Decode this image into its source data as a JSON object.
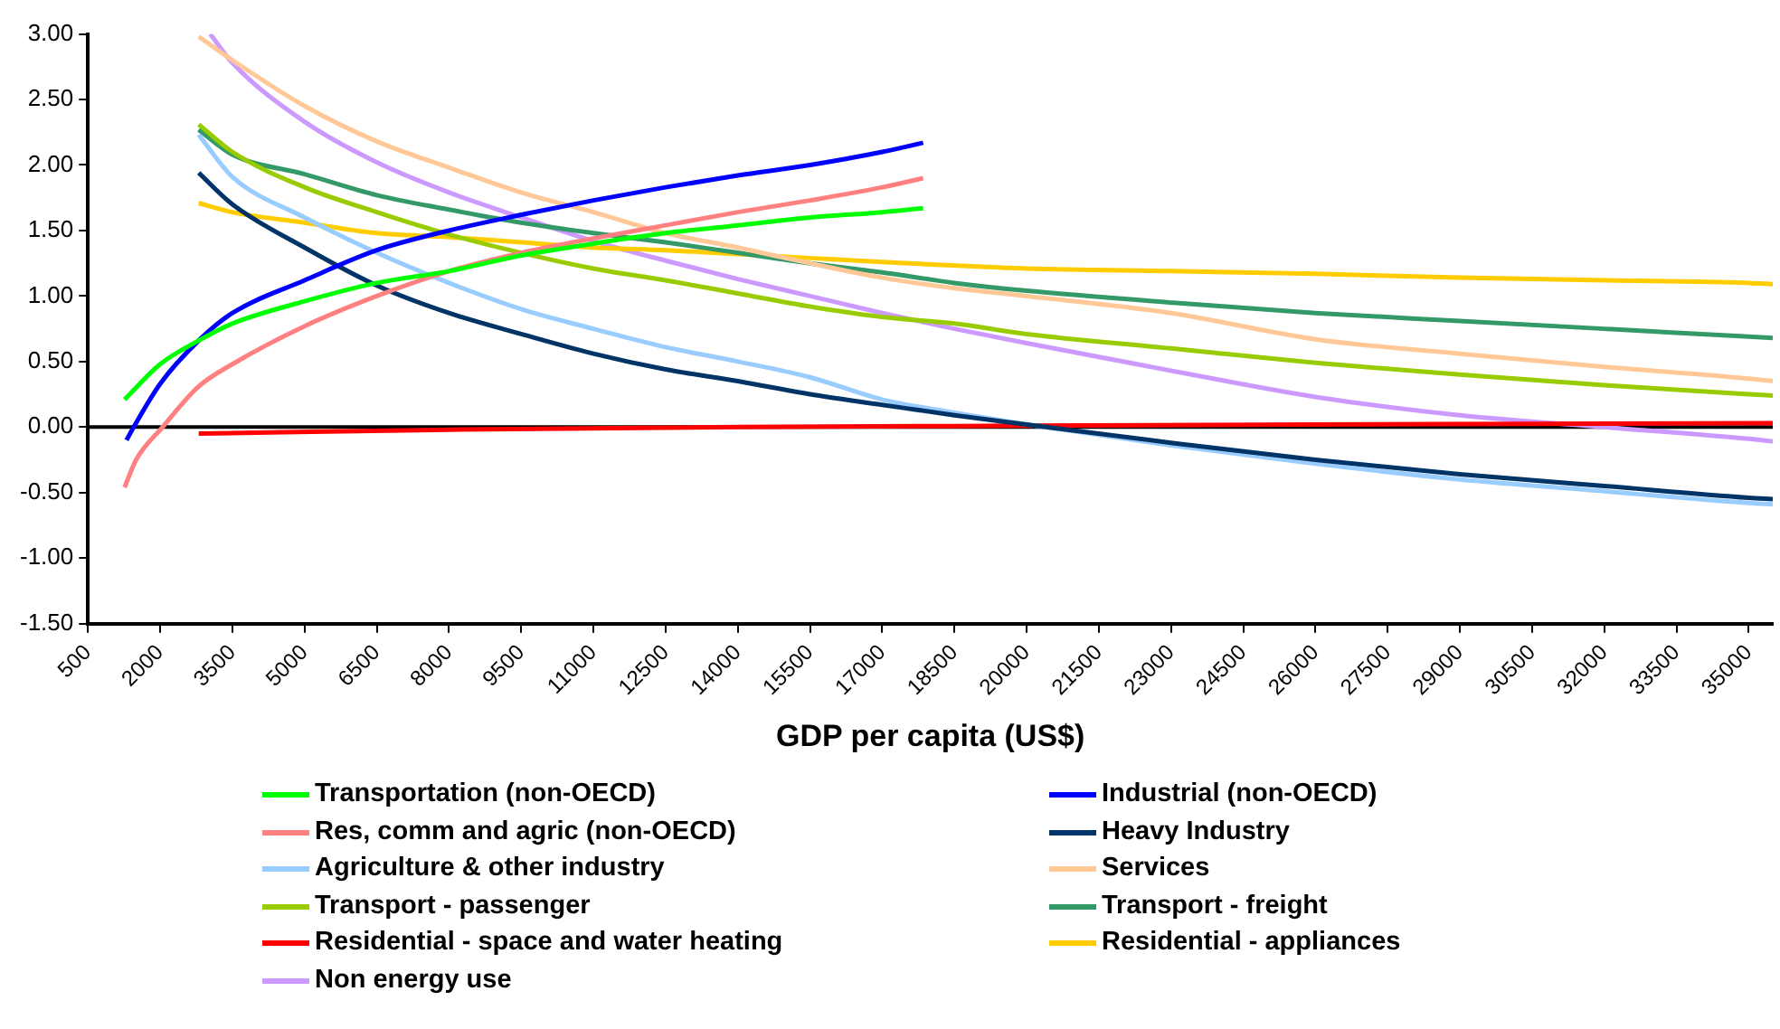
{
  "chart_data": {
    "type": "line",
    "xlabel": "GDP per capita (US$)",
    "xlim": [
      500,
      35500
    ],
    "xticks": [
      500,
      2000,
      3500,
      5000,
      6500,
      8000,
      9500,
      11000,
      12500,
      14000,
      15500,
      17000,
      18500,
      20000,
      21500,
      23000,
      24500,
      26000,
      27500,
      29000,
      30500,
      32000,
      33500,
      35000
    ],
    "ylim": [
      -1.5,
      3
    ],
    "yticks": [
      {
        "value": -1.5,
        "label": "-1.50"
      },
      {
        "value": -1,
        "label": "-1.00"
      },
      {
        "value": -0.5,
        "label": "-0.50"
      },
      {
        "value": 0,
        "label": "0.00"
      },
      {
        "value": 0.5,
        "label": "0.50"
      },
      {
        "value": 1,
        "label": "1.00"
      },
      {
        "value": 1.5,
        "label": "1.50"
      },
      {
        "value": 2,
        "label": "2.00"
      },
      {
        "value": 2.5,
        "label": "2.50"
      },
      {
        "value": 3,
        "label": "3.00"
      }
    ],
    "grid": false,
    "ref_lines": [
      {
        "axis": "y",
        "value": 0,
        "color": "#000000",
        "line_style": "solid"
      }
    ],
    "legend": "bottom",
    "marker": "none",
    "line_style": "solid",
    "series": [
      {
        "name": "Transportation (non-OECD)",
        "color": "#00ff00",
        "x": [
          1260,
          2000,
          2800,
          3500,
          5000,
          6500,
          8000,
          9500,
          11000,
          12500,
          14000,
          15500,
          17000,
          17850
        ],
        "values": [
          0.21,
          0.48,
          0.66,
          0.79,
          0.96,
          1.1,
          1.19,
          1.31,
          1.4,
          1.48,
          1.54,
          1.6,
          1.64,
          1.67
        ]
      },
      {
        "name": "Industrial (non-OECD)",
        "color": "#0000ff",
        "x": [
          1300,
          1450,
          2000,
          2800,
          3500,
          5000,
          6500,
          8000,
          9500,
          11000,
          12500,
          14000,
          15500,
          17000,
          17850
        ],
        "values": [
          -0.1,
          0.0,
          0.33,
          0.66,
          0.87,
          1.12,
          1.35,
          1.5,
          1.62,
          1.73,
          1.83,
          1.92,
          2.0,
          2.1,
          2.17
        ]
      },
      {
        "name": "Res, comm and agric (non-OECD)",
        "color": "#ff8080",
        "x": [
          1260,
          1500,
          2050,
          2800,
          3500,
          5000,
          6500,
          8000,
          9500,
          11000,
          12500,
          14000,
          15500,
          17000,
          17850
        ],
        "values": [
          -0.46,
          -0.25,
          0.0,
          0.31,
          0.48,
          0.77,
          1.0,
          1.19,
          1.33,
          1.44,
          1.54,
          1.64,
          1.73,
          1.83,
          1.9
        ]
      },
      {
        "name": "Heavy Industry",
        "color": "#003366",
        "x": [
          2800,
          3500,
          5000,
          6500,
          8000,
          9500,
          11000,
          12500,
          14000,
          15500,
          17000,
          18500,
          20000,
          23000,
          26000,
          29000,
          32000,
          35000,
          35500
        ],
        "values": [
          1.94,
          1.7,
          1.37,
          1.08,
          0.87,
          0.71,
          0.56,
          0.44,
          0.35,
          0.25,
          0.17,
          0.09,
          0.02,
          -0.12,
          -0.25,
          -0.36,
          -0.45,
          -0.54,
          -0.55
        ]
      },
      {
        "name": "Agriculture & other industry",
        "color": "#99ccff",
        "x": [
          2800,
          3500,
          5000,
          6500,
          8000,
          9500,
          11000,
          12500,
          14000,
          15500,
          17000,
          18500,
          20000,
          23000,
          26000,
          29000,
          32000,
          35000,
          35500
        ],
        "values": [
          2.23,
          1.91,
          1.6,
          1.33,
          1.1,
          0.9,
          0.75,
          0.61,
          0.5,
          0.38,
          0.21,
          0.11,
          0.02,
          -0.14,
          -0.28,
          -0.4,
          -0.49,
          -0.58,
          -0.59
        ]
      },
      {
        "name": "Services",
        "color": "#ffc896",
        "x": [
          2800,
          3500,
          5000,
          6500,
          8000,
          9500,
          11000,
          12500,
          14000,
          15500,
          17000,
          18500,
          20000,
          23000,
          26000,
          29000,
          32000,
          35000,
          35500
        ],
        "values": [
          2.98,
          2.8,
          2.45,
          2.18,
          1.98,
          1.79,
          1.64,
          1.48,
          1.37,
          1.25,
          1.14,
          1.06,
          1.0,
          0.87,
          0.67,
          0.56,
          0.46,
          0.37,
          0.35
        ]
      },
      {
        "name": "Transport - passenger",
        "color": "#99cc00",
        "x": [
          2800,
          3500,
          5000,
          6500,
          8000,
          9500,
          11000,
          12500,
          14000,
          15500,
          17000,
          18500,
          20000,
          23000,
          26000,
          29000,
          32000,
          35000,
          35500
        ],
        "values": [
          2.31,
          2.1,
          1.83,
          1.64,
          1.47,
          1.33,
          1.21,
          1.12,
          1.02,
          0.92,
          0.84,
          0.79,
          0.71,
          0.6,
          0.49,
          0.4,
          0.32,
          0.25,
          0.24
        ]
      },
      {
        "name": "Transport - freight",
        "color": "#339966",
        "x": [
          2800,
          3500,
          5000,
          6500,
          8000,
          9500,
          11000,
          12500,
          14000,
          15500,
          17000,
          18500,
          20000,
          23000,
          26000,
          29000,
          32000,
          35000,
          35500
        ],
        "values": [
          2.27,
          2.08,
          1.93,
          1.77,
          1.66,
          1.56,
          1.48,
          1.41,
          1.33,
          1.25,
          1.18,
          1.1,
          1.04,
          0.95,
          0.87,
          0.81,
          0.75,
          0.69,
          0.68
        ]
      },
      {
        "name": "Residential - space and water heating",
        "color": "#ff0000",
        "x": [
          2800,
          8000,
          14000,
          20000,
          26000,
          35500
        ],
        "values": [
          -0.05,
          -0.02,
          0.0,
          0.01,
          0.02,
          0.03
        ]
      },
      {
        "name": "Residential - appliances",
        "color": "#ffcc00",
        "x": [
          2800,
          3500,
          5000,
          6500,
          8000,
          9500,
          11000,
          12500,
          14000,
          15500,
          17000,
          20000,
          23000,
          26000,
          29000,
          32000,
          35000,
          35500
        ],
        "values": [
          1.71,
          1.64,
          1.56,
          1.48,
          1.45,
          1.41,
          1.37,
          1.35,
          1.32,
          1.29,
          1.26,
          1.21,
          1.19,
          1.17,
          1.14,
          1.12,
          1.1,
          1.09
        ]
      },
      {
        "name": "Non energy use",
        "color": "#cc99ff",
        "x": [
          3040,
          3500,
          5000,
          6500,
          8000,
          9500,
          11000,
          12500,
          14000,
          15500,
          17000,
          18500,
          20000,
          23000,
          26000,
          29000,
          32000,
          35000,
          35500
        ],
        "values": [
          3.0,
          2.78,
          2.33,
          2.02,
          1.79,
          1.6,
          1.42,
          1.27,
          1.13,
          1.0,
          0.87,
          0.75,
          0.64,
          0.43,
          0.23,
          0.09,
          0.0,
          -0.09,
          -0.11
        ]
      }
    ]
  }
}
